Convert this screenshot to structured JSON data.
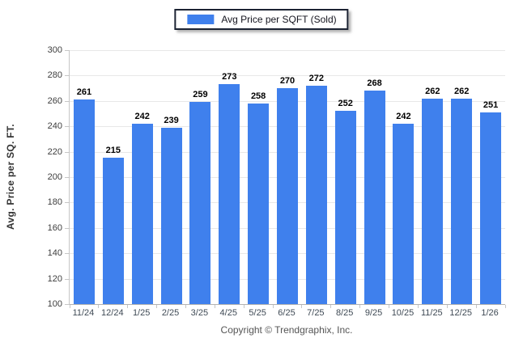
{
  "legend": {
    "label": "Avg Price per SQFT (Sold)"
  },
  "footer": {
    "text": "Copyright © Trendgraphix, Inc."
  },
  "colors": {
    "bar": "#3f80ed",
    "grid": "#e8e8e8",
    "axis": "#c6c6c6",
    "value_label": "#000000",
    "tick_label": "#3f4a55",
    "legend_border": "#1c2333"
  },
  "chart_data": {
    "type": "bar",
    "title": "",
    "xlabel": "",
    "ylabel": "Avg. Price per SQ. FT.",
    "categories": [
      "11/24",
      "12/24",
      "1/25",
      "2/25",
      "3/25",
      "4/25",
      "5/25",
      "6/25",
      "7/25",
      "8/25",
      "9/25",
      "10/25",
      "11/25",
      "12/25",
      "1/26"
    ],
    "series": [
      {
        "name": "Avg Price per SQFT (Sold)",
        "values": [
          261,
          215,
          242,
          239,
          259,
          273,
          258,
          270,
          272,
          252,
          268,
          242,
          262,
          262,
          251
        ]
      }
    ],
    "ylim": [
      100,
      300
    ],
    "ytick_step": 20,
    "grid": true,
    "data_labels": true,
    "legend_position": "top-center"
  }
}
